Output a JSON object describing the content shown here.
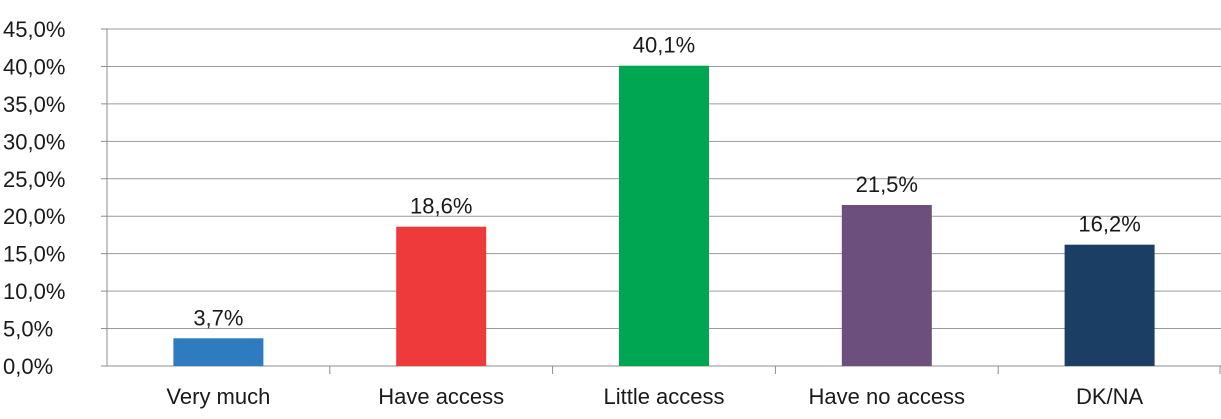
{
  "chart_data": {
    "type": "bar",
    "categories": [
      "Very much",
      "Have access",
      "Little access",
      "Have no access",
      "DK/NA"
    ],
    "values": [
      3.7,
      18.6,
      40.1,
      21.5,
      16.2
    ],
    "value_labels": [
      "3,7%",
      "18,6%",
      "40,1%",
      "21,5%",
      "16,2%"
    ],
    "bar_colors": [
      "#2e7cbf",
      "#ee3a3b",
      "#00a651",
      "#6c4f7c",
      "#1b3f64"
    ],
    "ylim": [
      0,
      45
    ],
    "ytick_values": [
      0,
      5,
      10,
      15,
      20,
      25,
      30,
      35,
      40,
      45
    ],
    "ytick_labels": [
      "0,0%",
      "5,0%",
      "10,0%",
      "15,0%",
      "20,0%",
      "25,0%",
      "30,0%",
      "35,0%",
      "40,0%",
      "45,0%"
    ],
    "grid": true,
    "legend": false
  }
}
